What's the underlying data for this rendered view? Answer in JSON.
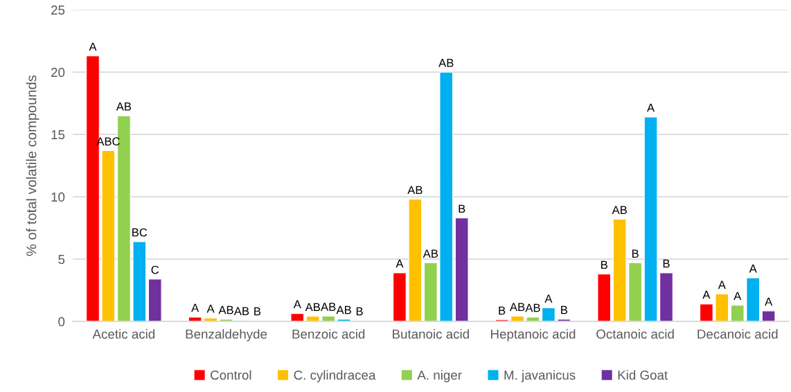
{
  "chart_data": {
    "type": "bar",
    "ylabel": "% of total volatile compounds",
    "categories": [
      "Acetic acid",
      "Benzaldehyde",
      "Benzoic acid",
      "Butanoic acid",
      "Heptanoic acid",
      "Octanoic acid",
      "Decanoic acid"
    ],
    "series": [
      {
        "name": "Control",
        "color": "#ff0000",
        "values": [
          21.3,
          0.35,
          0.64,
          3.9,
          0.13,
          3.8,
          1.4
        ],
        "value_labels": [
          "A",
          "A",
          "A",
          "A",
          "B",
          "B",
          "A"
        ]
      },
      {
        "name": "C. cylindracea",
        "color": "#ffc000",
        "values": [
          13.7,
          0.28,
          0.41,
          9.8,
          0.42,
          8.2,
          2.2
        ],
        "value_labels": [
          "ABC",
          "A",
          "AB",
          "AB",
          "AB",
          "AB",
          "A"
        ]
      },
      {
        "name": "A. niger",
        "color": "#92d050",
        "values": [
          16.5,
          0.18,
          0.43,
          4.7,
          0.35,
          4.7,
          1.3
        ],
        "value_labels": [
          "AB",
          "AB",
          "AB",
          "AB",
          "AB",
          "B",
          "A"
        ]
      },
      {
        "name": "M. javanicus",
        "color": "#00b0f0",
        "values": [
          6.4,
          0.09,
          0.18,
          20.0,
          1.09,
          16.4,
          3.5
        ],
        "value_labels": [
          "BC",
          "AB",
          "AB",
          "AB",
          "A",
          "A",
          "A"
        ]
      },
      {
        "name": "Kid Goat",
        "color": "#7030a0",
        "values": [
          3.4,
          0.07,
          0.07,
          8.3,
          0.18,
          3.9,
          0.85
        ],
        "value_labels": [
          "C",
          "B",
          "B",
          "B",
          "B",
          "B",
          "A"
        ]
      }
    ],
    "ylim": [
      0,
      25
    ],
    "yticks": [
      0,
      5,
      10,
      15,
      20,
      25
    ],
    "grid": "y",
    "legend": "bottom"
  }
}
